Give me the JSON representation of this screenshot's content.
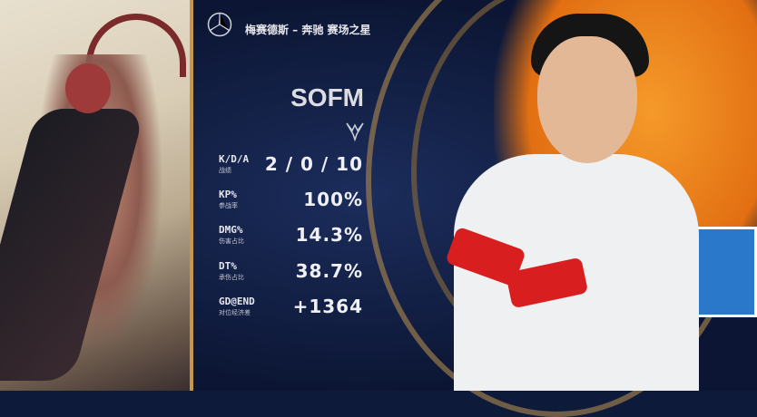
{
  "sponsor": {
    "title": "梅赛德斯 – 奔驰 赛场之星"
  },
  "player": {
    "name": "SOFM"
  },
  "stats": [
    {
      "label": "K/D/A",
      "sub": "战绩",
      "value": "2 / 0 / 10"
    },
    {
      "label": "KP%",
      "sub": "参战率",
      "value": "100%"
    },
    {
      "label": "DMG%",
      "sub": "伤害占比",
      "value": "14.3%"
    },
    {
      "label": "DT%",
      "sub": "承伤占比",
      "value": "38.7%"
    },
    {
      "label": "GD@END",
      "sub": "对位经济差",
      "value": "+1364"
    }
  ],
  "colors": {
    "background": "#0e1a3a",
    "accent_gold": "#c8964a",
    "team_orange": "#e26f12"
  }
}
